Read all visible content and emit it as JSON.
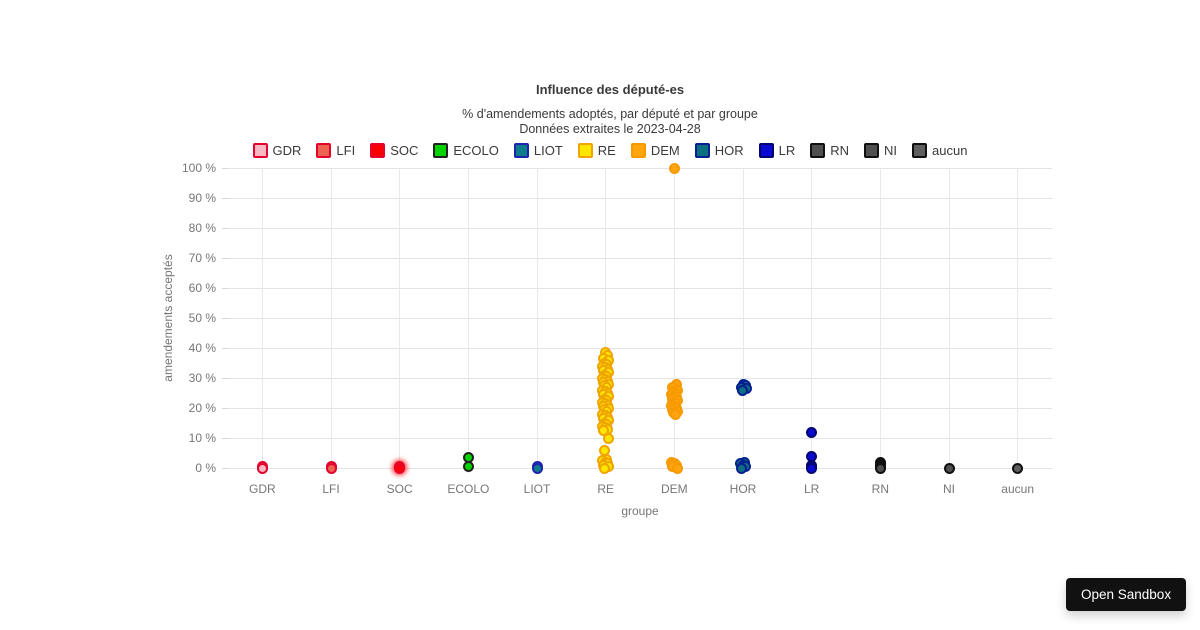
{
  "chart_data": {
    "type": "scatter",
    "title": "Influence des député-es",
    "subtitle_line1": "% d'amendements adoptés, par député et par groupe",
    "subtitle_line2": "Données extraites le 2023-04-28",
    "xlabel": "groupe",
    "ylabel": "amendements acceptés",
    "ylim": [
      0,
      100
    ],
    "ytick_step": 10,
    "ytick_suffix": " %",
    "grid": true,
    "legend_position": "top",
    "categories": [
      "GDR",
      "LFI",
      "SOC",
      "ECOLO",
      "LIOT",
      "RE",
      "DEM",
      "HOR",
      "LR",
      "RN",
      "NI",
      "aucun"
    ],
    "series": [
      {
        "name": "GDR",
        "fill": "#f9b9c3",
        "stroke": "#e4032e",
        "halo": false,
        "values": [
          0.5,
          0
        ]
      },
      {
        "name": "LFI",
        "fill": "#ec6352",
        "stroke": "#e4032e",
        "halo": false,
        "values": [
          0.5,
          0
        ]
      },
      {
        "name": "SOC",
        "fill": "#fa0000",
        "stroke": "#e4032e",
        "halo": true,
        "values": [
          0.5,
          0
        ]
      },
      {
        "name": "ECOLO",
        "fill": "#00d300",
        "stroke": "#222222",
        "halo": false,
        "values": [
          3.5,
          0.5
        ]
      },
      {
        "name": "LIOT",
        "fill": "#0e7b8d",
        "stroke": "#1d24b0",
        "halo": false,
        "values": [
          0.5,
          0
        ]
      },
      {
        "name": "RE",
        "fill": "#ffe500",
        "stroke": "#efa400",
        "halo": false,
        "values": [
          38.5,
          37.5,
          36.5,
          36,
          35,
          34.5,
          34,
          33.5,
          33,
          32.5,
          32,
          31,
          30.5,
          30,
          29.5,
          29,
          28.5,
          28,
          27.5,
          27,
          26,
          25.5,
          25,
          24.5,
          24,
          23,
          22.5,
          22,
          21.5,
          21,
          20.5,
          20,
          19.5,
          19,
          18,
          17.5,
          17,
          16.5,
          16,
          15,
          14.5,
          14,
          13.5,
          13,
          12.5,
          10,
          6,
          3,
          2.5,
          2,
          1.5,
          1,
          0.5,
          0
        ]
      },
      {
        "name": "DEM",
        "fill": "#ffa50f",
        "stroke": "#f79a00",
        "halo": false,
        "values": [
          100,
          28,
          27,
          26,
          25.5,
          25,
          24.5,
          24,
          23.5,
          23,
          22.5,
          22,
          21.5,
          21,
          20.5,
          20,
          19.5,
          19,
          18.5,
          18,
          2,
          1.5,
          1,
          0.5,
          0
        ]
      },
      {
        "name": "HOR",
        "fill": "#0c6e80",
        "stroke": "#041f91",
        "halo": false,
        "values": [
          28,
          27.5,
          27,
          26.5,
          26,
          2,
          1.5,
          1,
          0.5,
          0
        ]
      },
      {
        "name": "LR",
        "fill": "#0a0ad2",
        "stroke": "#050571",
        "halo": false,
        "values": [
          12,
          4,
          1,
          0.5,
          0
        ]
      },
      {
        "name": "RN",
        "fill": "#4f4f4f",
        "stroke": "#101010",
        "halo": false,
        "values": [
          2,
          1.5,
          1,
          0.5,
          0
        ]
      },
      {
        "name": "NI",
        "fill": "#4f4f4f",
        "stroke": "#101010",
        "halo": false,
        "values": [
          0
        ]
      },
      {
        "name": "aucun",
        "fill": "#5e5e5e",
        "stroke": "#101010",
        "halo": false,
        "values": [
          0
        ]
      }
    ]
  },
  "footer": {
    "open_sandbox_label": "Open Sandbox"
  }
}
